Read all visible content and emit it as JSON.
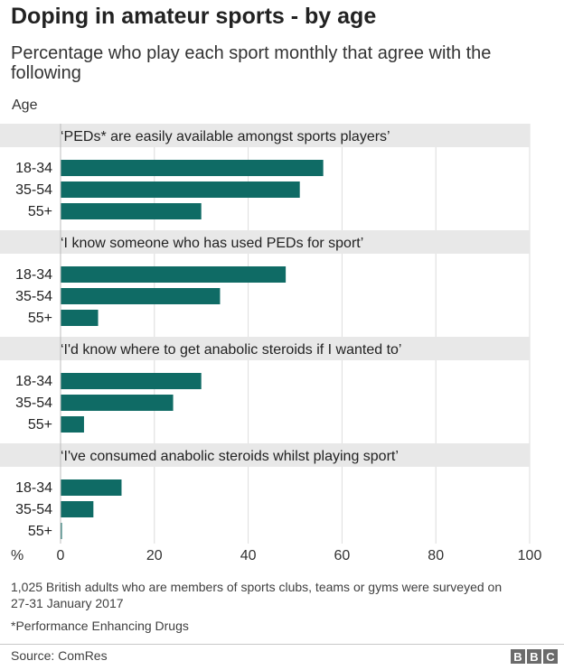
{
  "title": "Doping in amateur sports - by age",
  "subtitle": "Percentage who play each sport monthly that agree with the following",
  "y_axis_label": "Age",
  "x_unit_label": "%",
  "note": "1,025 British adults who are members of sports clubs, teams or gyms were surveyed on 27-31 January 2017",
  "footnote": "*Performance Enhancing Drugs",
  "source": "Source: ComRes",
  "logo_letters": [
    "B",
    "B",
    "C"
  ],
  "colors": {
    "bar": "#0f6b65",
    "panel": "#e8e8e8",
    "grid": "#dcdcdc"
  },
  "chart_data": {
    "type": "bar",
    "orientation": "horizontal",
    "xlim": [
      0,
      100
    ],
    "xticks": [
      0,
      20,
      40,
      60,
      80,
      100
    ],
    "grid": true,
    "groups": [
      {
        "question": "‘PEDs* are easily available amongst sports players’",
        "categories": [
          "18-34",
          "35-54",
          "55+"
        ],
        "values": [
          56,
          51,
          30
        ]
      },
      {
        "question": "‘I know someone who has used PEDs for sport’",
        "categories": [
          "18-34",
          "35-54",
          "55+"
        ],
        "values": [
          48,
          34,
          8
        ]
      },
      {
        "question": "‘I'd know where to get anabolic steroids if I wanted to’",
        "categories": [
          "18-34",
          "35-54",
          "55+"
        ],
        "values": [
          30,
          24,
          5
        ]
      },
      {
        "question": "‘I've consumed anabolic steroids whilst playing sport’",
        "categories": [
          "18-34",
          "35-54",
          "55+"
        ],
        "values": [
          13,
          7,
          0
        ]
      }
    ]
  }
}
